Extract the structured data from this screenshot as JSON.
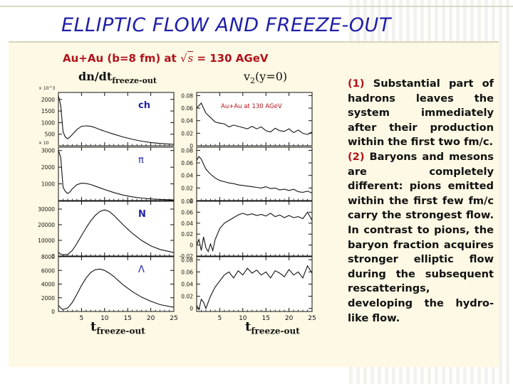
{
  "slide": {
    "title": "ELLIPTIC FLOW AND FREEZE-OUT",
    "accent_color": "#1f1fa8",
    "highlight_color": "#b0121b"
  },
  "figure": {
    "heading_main": "Au+Au (b=8 fm) at",
    "heading_sqrt": "s",
    "heading_energy": "= 130 AGeV",
    "left_title_main": "dn/dt",
    "left_title_sub": "freeze-out",
    "right_title_main": "v",
    "right_title_sub": "2",
    "right_title_tail": "(y=0)",
    "xaxis_main": "t",
    "xaxis_sub": "freeze-out",
    "inset_label": "Au+Au at 130 AGeV"
  },
  "notes": {
    "item1_num": "(1)",
    "item1_text": "Substantial part of hadrons leaves the system immediately after their production within the first two fm/c.",
    "item2_num": "(2)",
    "item2_text": "Baryons and mesons are completely different: pions emitted within the first few fm/c carry the strongest flow. In contrast to pions, the baryon fraction acquires stronger elliptic flow during the subsequent rescatterings, developing the hydro-like flow."
  },
  "chart_data": [
    {
      "type": "line",
      "panel": "dn/dt",
      "particle": "ch",
      "ylim": [
        0,
        2300
      ],
      "yticks": [
        0,
        500,
        1000,
        1500,
        2000
      ],
      "ylabels": [
        "",
        "500",
        "1000",
        "1500",
        "2000"
      ],
      "y_multiplier": "× 10^3",
      "xlim": [
        0,
        25
      ],
      "xticks": [
        5,
        10,
        15,
        20,
        25
      ],
      "x": [
        0,
        0.5,
        1,
        1.5,
        2,
        2.5,
        3,
        4,
        5,
        6,
        7,
        8,
        9,
        10,
        12,
        14,
        16,
        18,
        20,
        22,
        25
      ],
      "y": [
        2150,
        1750,
        600,
        380,
        300,
        380,
        480,
        700,
        840,
        860,
        840,
        780,
        700,
        630,
        500,
        380,
        280,
        200,
        140,
        100,
        60
      ]
    },
    {
      "type": "line",
      "panel": "v2",
      "particle": "ch",
      "ylim": [
        0,
        0.085
      ],
      "yticks": [
        0,
        0.02,
        0.04,
        0.06,
        0.08
      ],
      "ylabels": [
        "0",
        "0.02",
        "0.04",
        "0.06",
        "0.08"
      ],
      "xlim": [
        0,
        25
      ],
      "xticks": [
        5,
        10,
        15,
        20,
        25
      ],
      "x": [
        0,
        0.5,
        1,
        1.5,
        2,
        3,
        4,
        5,
        6,
        7,
        8,
        9,
        10,
        11,
        12,
        13,
        14,
        15,
        16,
        17,
        18,
        19,
        20,
        21,
        22,
        23,
        24,
        25
      ],
      "y": [
        0.06,
        0.064,
        0.068,
        0.06,
        0.052,
        0.045,
        0.038,
        0.036,
        0.035,
        0.03,
        0.033,
        0.031,
        0.029,
        0.027,
        0.031,
        0.027,
        0.03,
        0.024,
        0.022,
        0.028,
        0.024,
        0.023,
        0.027,
        0.021,
        0.025,
        0.02,
        0.018,
        0.022
      ]
    },
    {
      "type": "line",
      "panel": "dn/dt",
      "particle": "π",
      "ylim": [
        0,
        3200
      ],
      "yticks": [
        0,
        1000,
        2000,
        3000
      ],
      "ylabels": [
        "",
        "1000",
        "2000",
        "3000"
      ],
      "y_multiplier": "× 10",
      "xlim": [
        0,
        25
      ],
      "xticks": [
        5,
        10,
        15,
        20,
        25
      ],
      "x": [
        0,
        0.5,
        1,
        1.5,
        2,
        2.5,
        3,
        4,
        5,
        6,
        7,
        8,
        9,
        10,
        12,
        14,
        16,
        18,
        20,
        22,
        25
      ],
      "y": [
        3000,
        2600,
        800,
        550,
        420,
        520,
        700,
        950,
        1040,
        1020,
        960,
        860,
        760,
        660,
        480,
        330,
        220,
        150,
        100,
        70,
        40
      ]
    },
    {
      "type": "line",
      "panel": "v2",
      "particle": "π",
      "ylim": [
        0,
        0.085
      ],
      "yticks": [
        0,
        0.02,
        0.04,
        0.06,
        0.08
      ],
      "ylabels": [
        "0",
        "0.02",
        "0.04",
        "0.06",
        "0.08"
      ],
      "xlim": [
        0,
        25
      ],
      "xticks": [
        5,
        10,
        15,
        20,
        25
      ],
      "x": [
        0,
        0.5,
        1,
        1.5,
        2,
        3,
        4,
        5,
        6,
        7,
        8,
        9,
        10,
        11,
        12,
        13,
        14,
        15,
        16,
        17,
        18,
        19,
        20,
        21,
        22,
        23,
        24,
        25
      ],
      "y": [
        0.064,
        0.07,
        0.066,
        0.058,
        0.05,
        0.042,
        0.036,
        0.032,
        0.03,
        0.028,
        0.027,
        0.025,
        0.024,
        0.023,
        0.022,
        0.021,
        0.02,
        0.022,
        0.019,
        0.02,
        0.017,
        0.018,
        0.016,
        0.018,
        0.014,
        0.013,
        0.015,
        0.012
      ]
    },
    {
      "type": "line",
      "panel": "dn/dt",
      "particle": "N",
      "ylim": [
        0,
        35000
      ],
      "yticks": [
        0,
        10000,
        20000,
        30000
      ],
      "ylabels": [
        "0",
        "10000",
        "20000",
        "30000"
      ],
      "xlim": [
        0,
        25
      ],
      "xticks": [
        5,
        10,
        15,
        20,
        25
      ],
      "x": [
        0,
        0.5,
        1,
        2,
        3,
        4,
        5,
        6,
        7,
        8,
        9,
        10,
        11,
        12,
        13,
        14,
        16,
        18,
        20,
        22,
        25
      ],
      "y": [
        2500,
        1200,
        800,
        1000,
        3500,
        8000,
        13000,
        18000,
        22500,
        26000,
        28500,
        29500,
        28500,
        26000,
        23000,
        20000,
        14500,
        10000,
        6500,
        4200,
        2200
      ]
    },
    {
      "type": "line",
      "panel": "v2",
      "particle": "N",
      "ylim": [
        -0.02,
        0.08
      ],
      "yticks": [
        -0.02,
        0,
        0.02,
        0.04,
        0.06,
        0.08
      ],
      "ylabels": [
        "-0.02",
        "0",
        "0.02",
        "0.04",
        "0.06",
        "0.08"
      ],
      "xlim": [
        0,
        25
      ],
      "xticks": [
        5,
        10,
        15,
        20,
        25
      ],
      "x": [
        0,
        0.5,
        1,
        1.5,
        2,
        2.5,
        3,
        3.5,
        4,
        5,
        6,
        7,
        8,
        9,
        10,
        11,
        12,
        13,
        14,
        15,
        16,
        17,
        18,
        19,
        20,
        21,
        22,
        23,
        24,
        25
      ],
      "y": [
        0.0,
        0.01,
        -0.01,
        0.015,
        -0.005,
        -0.012,
        0.002,
        -0.01,
        0.01,
        0.03,
        0.04,
        0.045,
        0.05,
        0.055,
        0.058,
        0.055,
        0.057,
        0.054,
        0.056,
        0.053,
        0.058,
        0.052,
        0.055,
        0.05,
        0.054,
        0.05,
        0.052,
        0.048,
        0.06,
        0.045
      ]
    },
    {
      "type": "line",
      "panel": "dn/dt",
      "particle": "Λ",
      "ylim": [
        0,
        8000
      ],
      "yticks": [
        0,
        2000,
        4000,
        6000,
        8000
      ],
      "ylabels": [
        "0",
        "2000",
        "4000",
        "6000",
        "8000"
      ],
      "xlim": [
        0,
        25
      ],
      "xticks": [
        5,
        10,
        15,
        20,
        25
      ],
      "xticklabels": [
        "5",
        "10",
        "15",
        "20",
        "25"
      ],
      "x": [
        0,
        0.5,
        1,
        2,
        3,
        4,
        5,
        6,
        7,
        8,
        9,
        10,
        11,
        12,
        13,
        14,
        16,
        18,
        20,
        22,
        25
      ],
      "y": [
        900,
        500,
        300,
        500,
        1300,
        2500,
        3800,
        4900,
        5700,
        6100,
        6200,
        6000,
        5600,
        5100,
        4500,
        3900,
        2900,
        2100,
        1500,
        1000,
        600
      ]
    },
    {
      "type": "line",
      "panel": "v2",
      "particle": "Λ",
      "ylim": [
        -0.005,
        0.085
      ],
      "yticks": [
        0,
        0.02,
        0.04,
        0.06,
        0.08
      ],
      "ylabels": [
        "0",
        "0.02",
        "0.04",
        "0.06",
        "0.08"
      ],
      "xlim": [
        0,
        25
      ],
      "xticks": [
        5,
        10,
        15,
        20,
        25
      ],
      "xticklabels": [
        "5",
        "10",
        "15",
        "20",
        "25"
      ],
      "x": [
        0,
        0.5,
        1,
        1.5,
        2,
        3,
        4,
        5,
        6,
        7,
        8,
        9,
        10,
        11,
        12,
        13,
        14,
        15,
        16,
        17,
        18,
        19,
        20,
        21,
        22,
        23,
        24,
        25
      ],
      "y": [
        0.005,
        -0.002,
        0.015,
        0.01,
        0.0,
        0.02,
        0.035,
        0.045,
        0.055,
        0.06,
        0.05,
        0.062,
        0.055,
        0.066,
        0.058,
        0.063,
        0.055,
        0.06,
        0.05,
        0.062,
        0.058,
        0.052,
        0.064,
        0.055,
        0.06,
        0.05,
        0.07,
        0.058
      ]
    }
  ]
}
